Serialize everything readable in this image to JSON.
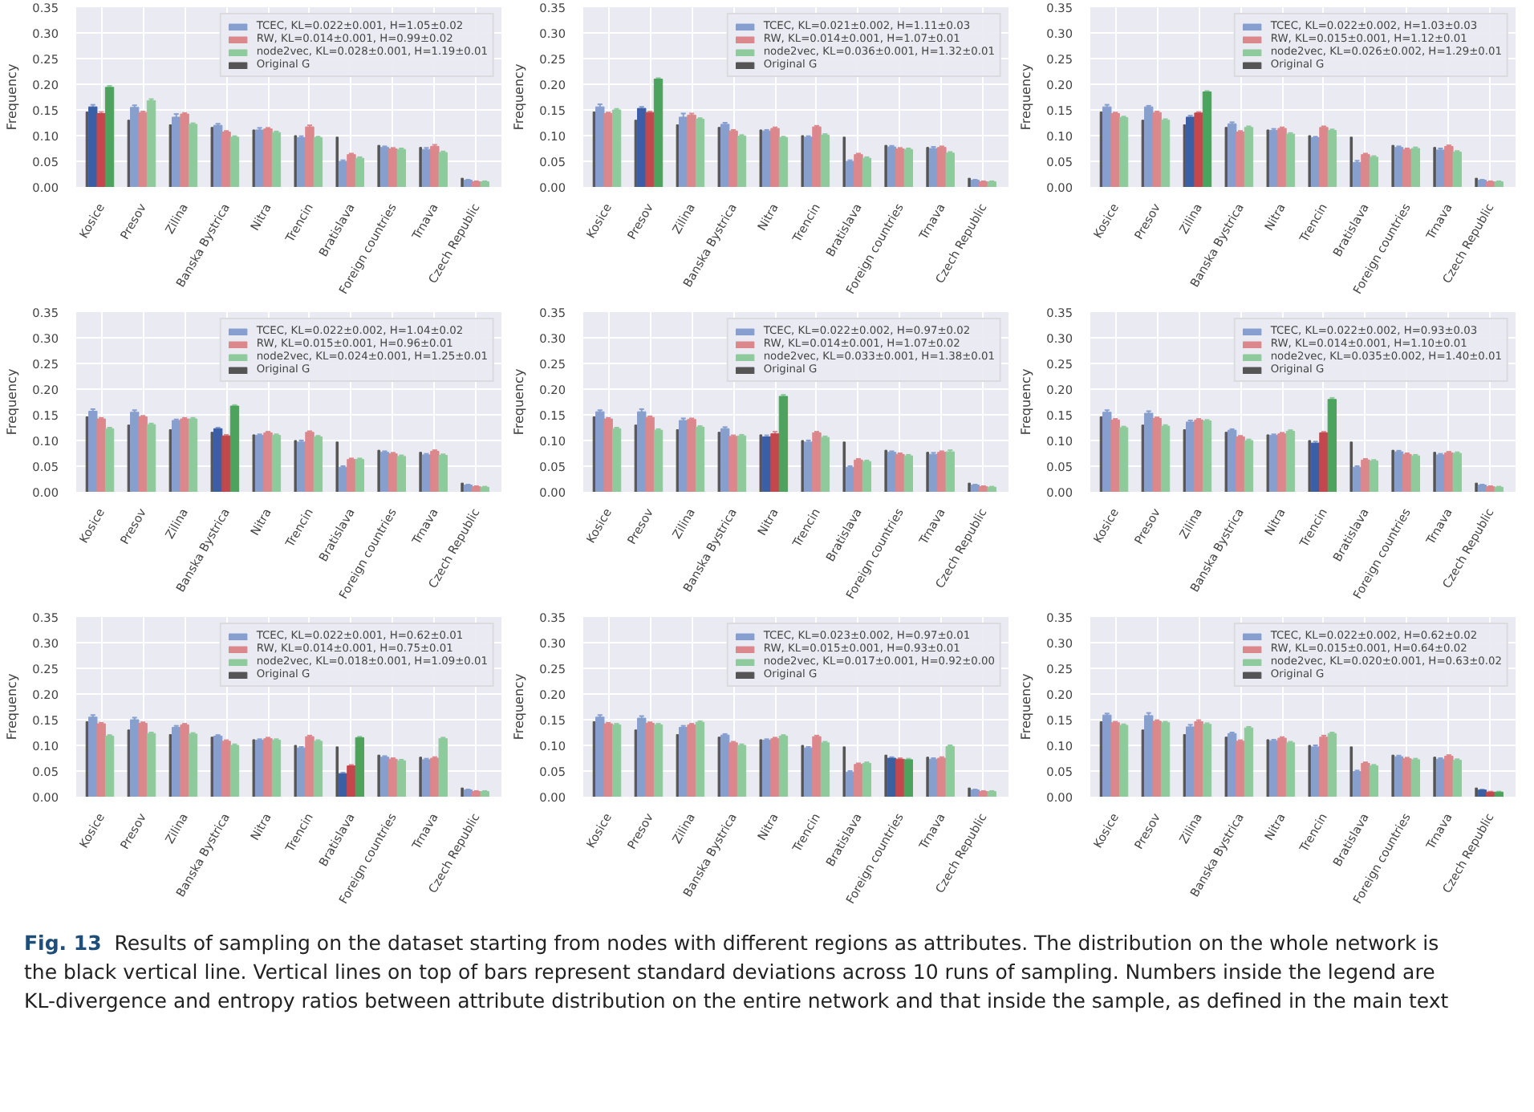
{
  "chart_data": [
    {
      "type": "bar",
      "ylabel": "Frequency",
      "categories": [
        "Kosice",
        "Presov",
        "Zilina",
        "Banska Bystrica",
        "Nitra",
        "Trencin",
        "Bratislava",
        "Foreign countries",
        "Trnava",
        "Czech Republic"
      ],
      "ylim": [
        0,
        0.35
      ],
      "yticks": [
        {
          "value": 0,
          "label": "0.00"
        },
        {
          "value": 0.05,
          "label": "0.05"
        },
        {
          "value": 0.1,
          "label": "0.10"
        },
        {
          "value": 0.15,
          "label": "0.15"
        },
        {
          "value": 0.2,
          "label": "0.20"
        },
        {
          "value": 0.25,
          "label": "0.25"
        },
        {
          "value": 0.3,
          "label": "0.30"
        },
        {
          "value": 0.35,
          "label": "0.35"
        }
      ],
      "grid": true,
      "legend": "top right",
      "series": [
        {
          "name": "TCEC, KL=0.022±0.001, H=1.05±0.02",
          "color": "#869fce",
          "colors": [
            "#3b5fa5",
            "#869fce",
            "#869fce",
            "#869fce",
            "#869fce",
            "#869fce",
            "#869fce",
            "#869fce",
            "#869fce",
            "#869fce"
          ],
          "values": [
            0.156,
            0.155,
            0.136,
            0.12,
            0.111,
            0.096,
            0.05,
            0.077,
            0.073,
            0.013
          ],
          "errors": [
            0.004,
            0.004,
            0.006,
            0.003,
            0.004,
            0.003,
            0.002,
            0.002,
            0.003,
            0.001
          ]
        },
        {
          "name": "RW, KL=0.014±0.001, H=0.99±0.02",
          "color": "#dc878c",
          "colors": [
            "#c4474d",
            "#dc878c",
            "#dc878c",
            "#dc878c",
            "#dc878c",
            "#dc878c",
            "#dc878c",
            "#dc878c",
            "#dc878c",
            "#dc878c"
          ],
          "values": [
            0.143,
            0.145,
            0.142,
            0.107,
            0.113,
            0.117,
            0.063,
            0.074,
            0.079,
            0.01
          ],
          "errors": [
            0.003,
            0.002,
            0.002,
            0.002,
            0.002,
            0.003,
            0.002,
            0.002,
            0.003,
            0.001
          ]
        },
        {
          "name": "node2vec, KL=0.028±0.001, H=1.19±0.01",
          "color": "#8fca9d",
          "colors": [
            "#4ba35d",
            "#8fca9d",
            "#8fca9d",
            "#8fca9d",
            "#8fca9d",
            "#8fca9d",
            "#8fca9d",
            "#8fca9d",
            "#8fca9d",
            "#8fca9d"
          ],
          "values": [
            0.194,
            0.168,
            0.122,
            0.097,
            0.106,
            0.096,
            0.056,
            0.073,
            0.067,
            0.01
          ],
          "errors": [
            0.003,
            0.003,
            0.002,
            0.002,
            0.002,
            0.002,
            0.002,
            0.002,
            0.002,
            0.001
          ]
        },
        {
          "name": "Original G",
          "color": "#555555",
          "values": [
            0.146,
            0.13,
            0.121,
            0.116,
            0.111,
            0.1,
            0.097,
            0.081,
            0.077,
            0.017
          ]
        }
      ]
    },
    {
      "type": "bar",
      "ylabel": "Frequency",
      "categories": [
        "Kosice",
        "Presov",
        "Zilina",
        "Banska Bystrica",
        "Nitra",
        "Trencin",
        "Bratislava",
        "Foreign countries",
        "Trnava",
        "Czech Republic"
      ],
      "ylim": [
        0,
        0.35
      ],
      "yticks": [
        {
          "value": 0,
          "label": "0.00"
        },
        {
          "value": 0.05,
          "label": "0.05"
        },
        {
          "value": 0.1,
          "label": "0.10"
        },
        {
          "value": 0.15,
          "label": "0.15"
        },
        {
          "value": 0.2,
          "label": "0.20"
        },
        {
          "value": 0.25,
          "label": "0.25"
        },
        {
          "value": 0.3,
          "label": "0.30"
        },
        {
          "value": 0.35,
          "label": "0.35"
        }
      ],
      "grid": true,
      "legend": "top right",
      "series": [
        {
          "name": "TCEC, KL=0.021±0.002, H=1.11±0.03",
          "color": "#869fce",
          "colors": [
            "#869fce",
            "#3b5fa5",
            "#869fce",
            "#869fce",
            "#869fce",
            "#869fce",
            "#869fce",
            "#869fce",
            "#869fce",
            "#869fce"
          ],
          "values": [
            0.156,
            0.153,
            0.136,
            0.122,
            0.109,
            0.097,
            0.05,
            0.078,
            0.075,
            0.013
          ],
          "errors": [
            0.005,
            0.003,
            0.007,
            0.003,
            0.002,
            0.002,
            0.002,
            0.002,
            0.003,
            0.001
          ]
        },
        {
          "name": "RW, KL=0.014±0.001, H=1.07±0.01",
          "color": "#dc878c",
          "colors": [
            "#dc878c",
            "#c4474d",
            "#dc878c",
            "#dc878c",
            "#dc878c",
            "#dc878c",
            "#dc878c",
            "#dc878c",
            "#dc878c",
            "#dc878c"
          ],
          "values": [
            0.143,
            0.145,
            0.14,
            0.109,
            0.114,
            0.117,
            0.063,
            0.074,
            0.077,
            0.01
          ],
          "errors": [
            0.002,
            0.002,
            0.003,
            0.002,
            0.002,
            0.002,
            0.002,
            0.002,
            0.002,
            0.001
          ]
        },
        {
          "name": "node2vec, KL=0.036±0.001, H=1.32±0.01",
          "color": "#8fca9d",
          "colors": [
            "#8fca9d",
            "#4ba35d",
            "#8fca9d",
            "#8fca9d",
            "#8fca9d",
            "#8fca9d",
            "#8fca9d",
            "#8fca9d",
            "#8fca9d",
            "#8fca9d"
          ],
          "values": [
            0.15,
            0.21,
            0.132,
            0.099,
            0.096,
            0.101,
            0.056,
            0.073,
            0.066,
            0.01
          ],
          "errors": [
            0.002,
            0.002,
            0.002,
            0.002,
            0.002,
            0.002,
            0.002,
            0.002,
            0.002,
            0.001
          ]
        },
        {
          "name": "Original G",
          "color": "#555555",
          "values": [
            0.146,
            0.13,
            0.121,
            0.116,
            0.111,
            0.1,
            0.097,
            0.081,
            0.077,
            0.017
          ]
        }
      ]
    },
    {
      "type": "bar",
      "ylabel": "Frequency",
      "categories": [
        "Kosice",
        "Presov",
        "Zilina",
        "Banska Bystrica",
        "Nitra",
        "Trencin",
        "Bratislava",
        "Foreign countries",
        "Trnava",
        "Czech Republic"
      ],
      "ylim": [
        0,
        0.35
      ],
      "yticks": [
        {
          "value": 0,
          "label": "0.00"
        },
        {
          "value": 0.05,
          "label": "0.05"
        },
        {
          "value": 0.1,
          "label": "0.10"
        },
        {
          "value": 0.15,
          "label": "0.15"
        },
        {
          "value": 0.2,
          "label": "0.20"
        },
        {
          "value": 0.25,
          "label": "0.25"
        },
        {
          "value": 0.3,
          "label": "0.30"
        },
        {
          "value": 0.35,
          "label": "0.35"
        }
      ],
      "grid": true,
      "legend": "top right",
      "series": [
        {
          "name": "TCEC, KL=0.022±0.002, H=1.03±0.03",
          "color": "#869fce",
          "colors": [
            "#869fce",
            "#869fce",
            "#3b5fa5",
            "#869fce",
            "#869fce",
            "#869fce",
            "#869fce",
            "#869fce",
            "#869fce",
            "#869fce"
          ],
          "values": [
            0.156,
            0.156,
            0.136,
            0.123,
            0.11,
            0.096,
            0.048,
            0.077,
            0.072,
            0.013
          ],
          "errors": [
            0.004,
            0.002,
            0.003,
            0.003,
            0.003,
            0.002,
            0.003,
            0.002,
            0.003,
            0.001
          ]
        },
        {
          "name": "RW, KL=0.015±0.001, H=1.12±0.01",
          "color": "#dc878c",
          "colors": [
            "#dc878c",
            "#dc878c",
            "#c4474d",
            "#dc878c",
            "#dc878c",
            "#dc878c",
            "#dc878c",
            "#dc878c",
            "#dc878c",
            "#dc878c"
          ],
          "values": [
            0.143,
            0.145,
            0.144,
            0.107,
            0.114,
            0.116,
            0.063,
            0.073,
            0.079,
            0.01
          ],
          "errors": [
            0.002,
            0.002,
            0.002,
            0.002,
            0.002,
            0.002,
            0.002,
            0.002,
            0.002,
            0.001
          ]
        },
        {
          "name": "node2vec, KL=0.026±0.002, H=1.29±0.01",
          "color": "#8fca9d",
          "colors": [
            "#8fca9d",
            "#8fca9d",
            "#4ba35d",
            "#8fca9d",
            "#8fca9d",
            "#8fca9d",
            "#8fca9d",
            "#8fca9d",
            "#8fca9d",
            "#8fca9d"
          ],
          "values": [
            0.135,
            0.13,
            0.185,
            0.116,
            0.103,
            0.11,
            0.058,
            0.075,
            0.068,
            0.01
          ],
          "errors": [
            0.002,
            0.002,
            0.002,
            0.002,
            0.002,
            0.002,
            0.002,
            0.002,
            0.002,
            0.001
          ]
        },
        {
          "name": "Original G",
          "color": "#555555",
          "values": [
            0.146,
            0.13,
            0.121,
            0.116,
            0.111,
            0.1,
            0.097,
            0.081,
            0.077,
            0.017
          ]
        }
      ]
    },
    {
      "type": "bar",
      "ylabel": "Frequency",
      "categories": [
        "Kosice",
        "Presov",
        "Zilina",
        "Banska Bystrica",
        "Nitra",
        "Trencin",
        "Bratislava",
        "Foreign countries",
        "Trnava",
        "Czech Republic"
      ],
      "ylim": [
        0,
        0.35
      ],
      "yticks": [
        {
          "value": 0,
          "label": "0.00"
        },
        {
          "value": 0.05,
          "label": "0.05"
        },
        {
          "value": 0.1,
          "label": "0.10"
        },
        {
          "value": 0.15,
          "label": "0.15"
        },
        {
          "value": 0.2,
          "label": "0.20"
        },
        {
          "value": 0.25,
          "label": "0.25"
        },
        {
          "value": 0.3,
          "label": "0.30"
        },
        {
          "value": 0.35,
          "label": "0.35"
        }
      ],
      "grid": true,
      "legend": "top right",
      "series": [
        {
          "name": "TCEC, KL=0.022±0.002, H=1.04±0.02",
          "color": "#869fce",
          "colors": [
            "#869fce",
            "#869fce",
            "#869fce",
            "#3b5fa5",
            "#869fce",
            "#869fce",
            "#869fce",
            "#869fce",
            "#869fce",
            "#869fce"
          ],
          "values": [
            0.157,
            0.155,
            0.139,
            0.123,
            0.11,
            0.097,
            0.048,
            0.077,
            0.072,
            0.013
          ],
          "errors": [
            0.004,
            0.004,
            0.002,
            0.002,
            0.002,
            0.003,
            0.002,
            0.002,
            0.002,
            0.001
          ]
        },
        {
          "name": "RW, KL=0.015±0.001, H=0.96±0.01",
          "color": "#dc878c",
          "colors": [
            "#dc878c",
            "#dc878c",
            "#dc878c",
            "#c4474d",
            "#dc878c",
            "#dc878c",
            "#dc878c",
            "#dc878c",
            "#dc878c",
            "#dc878c"
          ],
          "values": [
            0.142,
            0.146,
            0.142,
            0.109,
            0.115,
            0.116,
            0.063,
            0.074,
            0.079,
            0.01
          ],
          "errors": [
            0.002,
            0.002,
            0.002,
            0.002,
            0.002,
            0.002,
            0.002,
            0.002,
            0.002,
            0.001
          ]
        },
        {
          "name": "node2vec, KL=0.024±0.001, H=1.25±0.01",
          "color": "#8fca9d",
          "colors": [
            "#8fca9d",
            "#8fca9d",
            "#8fca9d",
            "#4ba35d",
            "#8fca9d",
            "#8fca9d",
            "#8fca9d",
            "#8fca9d",
            "#8fca9d",
            "#8fca9d"
          ],
          "values": [
            0.123,
            0.131,
            0.142,
            0.167,
            0.11,
            0.107,
            0.063,
            0.069,
            0.071,
            0.009
          ],
          "errors": [
            0.002,
            0.002,
            0.002,
            0.002,
            0.002,
            0.002,
            0.002,
            0.002,
            0.002,
            0.001
          ]
        },
        {
          "name": "Original G",
          "color": "#555555",
          "values": [
            0.146,
            0.13,
            0.121,
            0.116,
            0.111,
            0.1,
            0.097,
            0.081,
            0.077,
            0.017
          ]
        }
      ]
    },
    {
      "type": "bar",
      "ylabel": "Frequency",
      "categories": [
        "Kosice",
        "Presov",
        "Zilina",
        "Banska Bystrica",
        "Nitra",
        "Trencin",
        "Bratislava",
        "Foreign countries",
        "Trnava",
        "Czech Republic"
      ],
      "ylim": [
        0,
        0.35
      ],
      "yticks": [
        {
          "value": 0,
          "label": "0.00"
        },
        {
          "value": 0.05,
          "label": "0.05"
        },
        {
          "value": 0.1,
          "label": "0.10"
        },
        {
          "value": 0.15,
          "label": "0.15"
        },
        {
          "value": 0.2,
          "label": "0.20"
        },
        {
          "value": 0.25,
          "label": "0.25"
        },
        {
          "value": 0.3,
          "label": "0.30"
        },
        {
          "value": 0.35,
          "label": "0.35"
        }
      ],
      "grid": true,
      "legend": "top right",
      "series": [
        {
          "name": "TCEC, KL=0.022±0.002, H=0.97±0.02",
          "color": "#869fce",
          "colors": [
            "#869fce",
            "#869fce",
            "#869fce",
            "#869fce",
            "#3b5fa5",
            "#869fce",
            "#869fce",
            "#869fce",
            "#869fce",
            "#869fce"
          ],
          "values": [
            0.156,
            0.156,
            0.139,
            0.123,
            0.107,
            0.097,
            0.048,
            0.077,
            0.073,
            0.013
          ],
          "errors": [
            0.003,
            0.005,
            0.004,
            0.003,
            0.003,
            0.003,
            0.002,
            0.002,
            0.003,
            0.001
          ]
        },
        {
          "name": "RW, KL=0.014±0.001, H=1.07±0.02",
          "color": "#dc878c",
          "colors": [
            "#dc878c",
            "#dc878c",
            "#dc878c",
            "#dc878c",
            "#c4474d",
            "#dc878c",
            "#dc878c",
            "#dc878c",
            "#dc878c",
            "#dc878c"
          ],
          "values": [
            0.142,
            0.145,
            0.141,
            0.108,
            0.113,
            0.115,
            0.062,
            0.073,
            0.077,
            0.01
          ],
          "errors": [
            0.002,
            0.002,
            0.002,
            0.002,
            0.004,
            0.002,
            0.002,
            0.002,
            0.002,
            0.001
          ]
        },
        {
          "name": "node2vec, KL=0.033±0.001, H=1.38±0.01",
          "color": "#8fca9d",
          "colors": [
            "#8fca9d",
            "#8fca9d",
            "#8fca9d",
            "#8fca9d",
            "#4ba35d",
            "#8fca9d",
            "#8fca9d",
            "#8fca9d",
            "#8fca9d",
            "#8fca9d"
          ],
          "values": [
            0.123,
            0.12,
            0.126,
            0.109,
            0.186,
            0.106,
            0.059,
            0.07,
            0.078,
            0.009
          ],
          "errors": [
            0.002,
            0.002,
            0.002,
            0.002,
            0.003,
            0.002,
            0.002,
            0.002,
            0.003,
            0.001
          ]
        },
        {
          "name": "Original G",
          "color": "#555555",
          "values": [
            0.146,
            0.13,
            0.121,
            0.116,
            0.111,
            0.1,
            0.097,
            0.081,
            0.077,
            0.017
          ]
        }
      ]
    },
    {
      "type": "bar",
      "ylabel": "Frequency",
      "categories": [
        "Kosice",
        "Presov",
        "Zilina",
        "Banska Bystrica",
        "Nitra",
        "Trencin",
        "Bratislava",
        "Foreign countries",
        "Trnava",
        "Czech Republic"
      ],
      "ylim": [
        0,
        0.35
      ],
      "yticks": [
        {
          "value": 0,
          "label": "0.00"
        },
        {
          "value": 0.05,
          "label": "0.05"
        },
        {
          "value": 0.1,
          "label": "0.10"
        },
        {
          "value": 0.15,
          "label": "0.15"
        },
        {
          "value": 0.2,
          "label": "0.20"
        },
        {
          "value": 0.25,
          "label": "0.25"
        },
        {
          "value": 0.3,
          "label": "0.30"
        },
        {
          "value": 0.35,
          "label": "0.35"
        }
      ],
      "grid": true,
      "legend": "top right",
      "series": [
        {
          "name": "TCEC, KL=0.022±0.002, H=0.93±0.03",
          "color": "#869fce",
          "colors": [
            "#869fce",
            "#869fce",
            "#869fce",
            "#869fce",
            "#869fce",
            "#3b5fa5",
            "#869fce",
            "#869fce",
            "#869fce",
            "#869fce"
          ],
          "values": [
            0.155,
            0.153,
            0.136,
            0.12,
            0.11,
            0.095,
            0.048,
            0.078,
            0.072,
            0.013
          ],
          "errors": [
            0.004,
            0.004,
            0.003,
            0.002,
            0.002,
            0.003,
            0.002,
            0.002,
            0.002,
            0.001
          ]
        },
        {
          "name": "RW, KL=0.014±0.001, H=1.10±0.01",
          "color": "#dc878c",
          "colors": [
            "#dc878c",
            "#dc878c",
            "#dc878c",
            "#dc878c",
            "#dc878c",
            "#c4474d",
            "#dc878c",
            "#dc878c",
            "#dc878c",
            "#dc878c"
          ],
          "values": [
            0.14,
            0.143,
            0.14,
            0.107,
            0.113,
            0.115,
            0.062,
            0.073,
            0.076,
            0.01
          ],
          "errors": [
            0.002,
            0.002,
            0.002,
            0.002,
            0.002,
            0.002,
            0.002,
            0.002,
            0.002,
            0.001
          ]
        },
        {
          "name": "node2vec, KL=0.035±0.002, H=1.40±0.01",
          "color": "#8fca9d",
          "colors": [
            "#8fca9d",
            "#8fca9d",
            "#8fca9d",
            "#8fca9d",
            "#8fca9d",
            "#4ba35d",
            "#8fca9d",
            "#8fca9d",
            "#8fca9d",
            "#8fca9d"
          ],
          "values": [
            0.125,
            0.128,
            0.138,
            0.1,
            0.118,
            0.18,
            0.06,
            0.07,
            0.075,
            0.009
          ],
          "errors": [
            0.002,
            0.002,
            0.002,
            0.002,
            0.002,
            0.003,
            0.002,
            0.002,
            0.002,
            0.001
          ]
        },
        {
          "name": "Original G",
          "color": "#555555",
          "values": [
            0.146,
            0.13,
            0.121,
            0.116,
            0.111,
            0.1,
            0.097,
            0.081,
            0.077,
            0.017
          ]
        }
      ]
    },
    {
      "type": "bar",
      "ylabel": "Frequency",
      "categories": [
        "Kosice",
        "Presov",
        "Zilina",
        "Banska Bystrica",
        "Nitra",
        "Trencin",
        "Bratislava",
        "Foreign countries",
        "Trnava",
        "Czech Republic"
      ],
      "ylim": [
        0,
        0.35
      ],
      "yticks": [
        {
          "value": 0,
          "label": "0.00"
        },
        {
          "value": 0.05,
          "label": "0.05"
        },
        {
          "value": 0.1,
          "label": "0.10"
        },
        {
          "value": 0.15,
          "label": "0.15"
        },
        {
          "value": 0.2,
          "label": "0.20"
        },
        {
          "value": 0.25,
          "label": "0.25"
        },
        {
          "value": 0.3,
          "label": "0.30"
        },
        {
          "value": 0.35,
          "label": "0.35"
        }
      ],
      "grid": true,
      "legend": "top right",
      "series": [
        {
          "name": "TCEC, KL=0.022±0.001, H=0.62±0.01",
          "color": "#869fce",
          "colors": [
            "#869fce",
            "#869fce",
            "#869fce",
            "#869fce",
            "#869fce",
            "#869fce",
            "#3b5fa5",
            "#869fce",
            "#869fce",
            "#869fce"
          ],
          "values": [
            0.155,
            0.15,
            0.135,
            0.118,
            0.11,
            0.095,
            0.045,
            0.077,
            0.072,
            0.013
          ],
          "errors": [
            0.004,
            0.004,
            0.003,
            0.002,
            0.002,
            0.002,
            0.002,
            0.002,
            0.002,
            0.001
          ]
        },
        {
          "name": "RW, KL=0.014±0.001, H=0.75±0.01",
          "color": "#dc878c",
          "colors": [
            "#dc878c",
            "#dc878c",
            "#dc878c",
            "#dc878c",
            "#dc878c",
            "#dc878c",
            "#c4474d",
            "#dc878c",
            "#dc878c",
            "#dc878c"
          ],
          "values": [
            0.142,
            0.143,
            0.14,
            0.108,
            0.113,
            0.117,
            0.06,
            0.073,
            0.075,
            0.01
          ],
          "errors": [
            0.002,
            0.002,
            0.002,
            0.002,
            0.002,
            0.002,
            0.002,
            0.002,
            0.002,
            0.001
          ]
        },
        {
          "name": "node2vec, KL=0.018±0.001, H=1.09±0.01",
          "color": "#8fca9d",
          "colors": [
            "#8fca9d",
            "#8fca9d",
            "#8fca9d",
            "#8fca9d",
            "#8fca9d",
            "#8fca9d",
            "#4ba35d",
            "#8fca9d",
            "#8fca9d",
            "#8fca9d"
          ],
          "values": [
            0.118,
            0.123,
            0.122,
            0.1,
            0.11,
            0.108,
            0.115,
            0.07,
            0.113,
            0.01
          ],
          "errors": [
            0.002,
            0.002,
            0.002,
            0.002,
            0.002,
            0.002,
            0.002,
            0.002,
            0.002,
            0.001
          ]
        },
        {
          "name": "Original G",
          "color": "#555555",
          "values": [
            0.146,
            0.13,
            0.121,
            0.116,
            0.111,
            0.1,
            0.097,
            0.081,
            0.077,
            0.017
          ]
        }
      ]
    },
    {
      "type": "bar",
      "ylabel": "Frequency",
      "categories": [
        "Kosice",
        "Presov",
        "Zilina",
        "Banska Bystrica",
        "Nitra",
        "Trencin",
        "Bratislava",
        "Foreign countries",
        "Trnava",
        "Czech Republic"
      ],
      "ylim": [
        0,
        0.35
      ],
      "yticks": [
        {
          "value": 0,
          "label": "0.00"
        },
        {
          "value": 0.05,
          "label": "0.05"
        },
        {
          "value": 0.1,
          "label": "0.10"
        },
        {
          "value": 0.15,
          "label": "0.15"
        },
        {
          "value": 0.2,
          "label": "0.20"
        },
        {
          "value": 0.25,
          "label": "0.25"
        },
        {
          "value": 0.3,
          "label": "0.30"
        },
        {
          "value": 0.35,
          "label": "0.35"
        }
      ],
      "grid": true,
      "legend": "top right",
      "series": [
        {
          "name": "TCEC, KL=0.023±0.002, H=0.97±0.01",
          "color": "#869fce",
          "colors": [
            "#869fce",
            "#869fce",
            "#869fce",
            "#869fce",
            "#869fce",
            "#869fce",
            "#869fce",
            "#3b5fa5",
            "#869fce",
            "#869fce"
          ],
          "values": [
            0.155,
            0.153,
            0.135,
            0.12,
            0.11,
            0.095,
            0.048,
            0.075,
            0.073,
            0.013
          ],
          "errors": [
            0.004,
            0.004,
            0.003,
            0.002,
            0.002,
            0.002,
            0.002,
            0.002,
            0.002,
            0.001
          ]
        },
        {
          "name": "RW, KL=0.015±0.001, H=0.93±0.01",
          "color": "#dc878c",
          "colors": [
            "#dc878c",
            "#dc878c",
            "#dc878c",
            "#dc878c",
            "#dc878c",
            "#dc878c",
            "#dc878c",
            "#c4474d",
            "#dc878c",
            "#dc878c"
          ],
          "values": [
            0.142,
            0.143,
            0.14,
            0.105,
            0.113,
            0.117,
            0.063,
            0.073,
            0.075,
            0.01
          ],
          "errors": [
            0.002,
            0.002,
            0.002,
            0.002,
            0.002,
            0.002,
            0.002,
            0.002,
            0.002,
            0.001
          ]
        },
        {
          "name": "node2vec, KL=0.017±0.001, H=0.92±0.00",
          "color": "#8fca9d",
          "colors": [
            "#8fca9d",
            "#8fca9d",
            "#8fca9d",
            "#8fca9d",
            "#8fca9d",
            "#8fca9d",
            "#8fca9d",
            "#4ba35d",
            "#8fca9d",
            "#8fca9d"
          ],
          "values": [
            0.14,
            0.14,
            0.145,
            0.1,
            0.118,
            0.105,
            0.065,
            0.072,
            0.098,
            0.01
          ],
          "errors": [
            0.002,
            0.002,
            0.002,
            0.002,
            0.002,
            0.002,
            0.002,
            0.002,
            0.002,
            0.001
          ]
        },
        {
          "name": "Original G",
          "color": "#555555",
          "values": [
            0.146,
            0.13,
            0.121,
            0.116,
            0.111,
            0.1,
            0.097,
            0.081,
            0.077,
            0.017
          ]
        }
      ]
    },
    {
      "type": "bar",
      "ylabel": "Frequency",
      "categories": [
        "Kosice",
        "Presov",
        "Zilina",
        "Banska Bystrica",
        "Nitra",
        "Trencin",
        "Bratislava",
        "Foreign countries",
        "Trnava",
        "Czech Republic"
      ],
      "ylim": [
        0,
        0.35
      ],
      "yticks": [
        {
          "value": 0,
          "label": "0.00"
        },
        {
          "value": 0.05,
          "label": "0.05"
        },
        {
          "value": 0.1,
          "label": "0.10"
        },
        {
          "value": 0.15,
          "label": "0.15"
        },
        {
          "value": 0.2,
          "label": "0.20"
        },
        {
          "value": 0.25,
          "label": "0.25"
        },
        {
          "value": 0.3,
          "label": "0.30"
        },
        {
          "value": 0.35,
          "label": "0.35"
        }
      ],
      "grid": true,
      "legend": "top right",
      "annotations": [
        "Fig. 13",
        "Results of sampling on the dataset starting from nodes with different regions as attributes. The distribution on the whole network is the black vertical line. Vertical lines on top of bars represent standard deviations across 10 runs of sampling. Numbers inside the legend are KL-divergence and entropy ratios between attribute distribution on the entire network and that inside the sample, as defined in the main text"
      ],
      "series": [
        {
          "name": "TCEC, KL=0.022±0.002, H=0.62±0.02",
          "color": "#869fce",
          "colors": [
            "#869fce",
            "#869fce",
            "#869fce",
            "#869fce",
            "#869fce",
            "#869fce",
            "#869fce",
            "#869fce",
            "#869fce",
            "#3b5fa5"
          ],
          "values": [
            0.159,
            0.158,
            0.136,
            0.123,
            0.109,
            0.097,
            0.049,
            0.078,
            0.073,
            0.013
          ],
          "errors": [
            0.003,
            0.005,
            0.004,
            0.002,
            0.002,
            0.003,
            0.002,
            0.002,
            0.002,
            0.001
          ]
        },
        {
          "name": "RW, KL=0.015±0.001, H=0.64±0.02",
          "color": "#dc878c",
          "colors": [
            "#dc878c",
            "#dc878c",
            "#dc878c",
            "#dc878c",
            "#dc878c",
            "#dc878c",
            "#dc878c",
            "#dc878c",
            "#dc878c",
            "#c4474d"
          ],
          "values": [
            0.144,
            0.147,
            0.146,
            0.108,
            0.114,
            0.116,
            0.065,
            0.074,
            0.079,
            0.009
          ],
          "errors": [
            0.002,
            0.002,
            0.003,
            0.002,
            0.002,
            0.003,
            0.002,
            0.002,
            0.002,
            0.001
          ]
        },
        {
          "name": "node2vec, KL=0.020±0.001, H=0.63±0.02",
          "color": "#8fca9d",
          "colors": [
            "#8fca9d",
            "#8fca9d",
            "#8fca9d",
            "#8fca9d",
            "#8fca9d",
            "#8fca9d",
            "#8fca9d",
            "#8fca9d",
            "#8fca9d",
            "#4ba35d"
          ],
          "values": [
            0.139,
            0.144,
            0.141,
            0.134,
            0.105,
            0.123,
            0.06,
            0.072,
            0.071,
            0.009
          ],
          "errors": [
            0.002,
            0.002,
            0.002,
            0.002,
            0.002,
            0.002,
            0.002,
            0.002,
            0.002,
            0.001
          ]
        },
        {
          "name": "Original G",
          "color": "#555555",
          "values": [
            0.146,
            0.13,
            0.121,
            0.116,
            0.111,
            0.1,
            0.097,
            0.081,
            0.077,
            0.017
          ]
        }
      ]
    }
  ]
}
